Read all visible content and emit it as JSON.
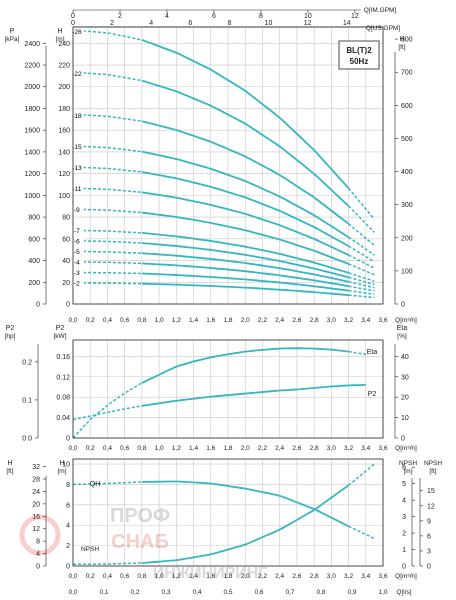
{
  "chart_data": [
    {
      "type": "line",
      "title": "BL(T)2",
      "subtitle": "50Hz",
      "top_axes": [
        {
          "label": "Q[IM.GPM]",
          "ticks": [
            0,
            2,
            4,
            6,
            8,
            10,
            12
          ]
        },
        {
          "label": "Q[US.GPM]",
          "ticks": [
            0,
            2,
            4,
            6,
            8,
            10,
            12,
            14
          ]
        }
      ],
      "xlabel": "Q[m³/h]",
      "xlim": [
        0,
        3.6
      ],
      "x_ticks": [
        "0,0",
        "0,2",
        "0,4",
        "0,6",
        "0,8",
        "1,0",
        "1,2",
        "1,4",
        "1,6",
        "1,8",
        "2,0",
        "2,2",
        "2,4",
        "2,6",
        "2,8",
        "3,0",
        "3,2",
        "3,4",
        "3,6"
      ],
      "left_axes": [
        {
          "label": "P",
          "unit": "[kPa]",
          "ticks": [
            0,
            200,
            400,
            600,
            800,
            1000,
            1200,
            1400,
            1600,
            1800,
            2000,
            2200,
            2400
          ]
        },
        {
          "label": "H",
          "unit": "[m]",
          "ticks": [
            0,
            20,
            40,
            60,
            80,
            100,
            120,
            140,
            160,
            180,
            200,
            220,
            240
          ]
        }
      ],
      "right_axis": {
        "label": "H",
        "unit": "[ft]",
        "ticks": [
          0,
          100,
          200,
          300,
          400,
          500,
          600,
          700,
          800
        ]
      },
      "ylim": [
        0,
        255
      ],
      "stages": [
        2,
        3,
        4,
        5,
        6,
        7,
        9,
        11,
        13,
        15,
        18,
        22,
        26
      ],
      "curve_shape": {
        "x": [
          0.0,
          0.4,
          0.8,
          1.2,
          1.6,
          2.0,
          2.4,
          2.8,
          3.2,
          3.5
        ],
        "h_per_stage": [
          9.7,
          9.6,
          9.35,
          8.9,
          8.3,
          7.55,
          6.6,
          5.45,
          4.1,
          3.0
        ],
        "solid_range": [
          0.8,
          3.2
        ]
      }
    },
    {
      "type": "line",
      "xlabel": "Q[m³/h]",
      "xlim": [
        0,
        3.6
      ],
      "x_ticks": [
        "0,0",
        "0,2",
        "0,4",
        "0,6",
        "0,8",
        "1,0",
        "1,2",
        "1,4",
        "1,6",
        "1,8",
        "2,0",
        "2,2",
        "2,4",
        "2,6",
        "2,8",
        "3,0",
        "3,2",
        "3,4",
        "3,6"
      ],
      "left_axes": [
        {
          "label": "P2",
          "unit": "[hp]",
          "ticks": [
            0.0,
            0.1,
            0.2
          ]
        },
        {
          "label": "P2",
          "unit": "[kW]",
          "ticks": [
            0,
            0.04,
            0.08,
            0.12,
            0.16
          ]
        }
      ],
      "right_axis": {
        "label": "Eta",
        "unit": "[%]",
        "ticks": [
          0,
          10,
          20,
          30,
          40
        ]
      },
      "ylim": [
        0,
        0.192
      ],
      "series": [
        {
          "name": "Eta",
          "axis": "right",
          "x": [
            0.0,
            0.2,
            0.4,
            0.6,
            0.8,
            1.0,
            1.2,
            1.4,
            1.6,
            1.8,
            2.0,
            2.2,
            2.4,
            2.6,
            2.8,
            3.0,
            3.2,
            3.4
          ],
          "y": [
            0,
            9,
            16,
            22,
            27,
            31,
            35,
            37.5,
            39.5,
            41,
            42.3,
            43.2,
            43.8,
            44,
            43.8,
            43.3,
            42.3,
            41
          ],
          "solid_range": [
            0.8,
            3.2
          ]
        },
        {
          "name": "P2",
          "axis": "left",
          "x": [
            0.0,
            0.2,
            0.4,
            0.6,
            0.8,
            1.0,
            1.2,
            1.4,
            1.6,
            1.8,
            2.0,
            2.2,
            2.4,
            2.6,
            2.8,
            3.0,
            3.2,
            3.4
          ],
          "y": [
            0.036,
            0.043,
            0.05,
            0.057,
            0.063,
            0.068,
            0.073,
            0.077,
            0.081,
            0.084,
            0.087,
            0.09,
            0.093,
            0.095,
            0.098,
            0.101,
            0.103,
            0.104
          ],
          "solid_range": [
            0.8,
            3.4
          ]
        }
      ]
    },
    {
      "type": "line",
      "xlabel": "Q[m³/h]",
      "x2label": "Q[l/s]",
      "xlim": [
        0,
        3.6
      ],
      "x_ticks": [
        "0,0",
        "0,2",
        "0,4",
        "0,6",
        "0,8",
        "1,0",
        "1,2",
        "1,4",
        "1,6",
        "1,8",
        "2,0",
        "2,2",
        "2,4",
        "2,6",
        "2,8",
        "3,0",
        "3,2",
        "3,4",
        "3,6"
      ],
      "x2_ticks": [
        "0,0",
        "0,1",
        "0,2",
        "0,3",
        "0,4",
        "0,5",
        "0,6",
        "0,7",
        "0,8",
        "0,9",
        "1,0"
      ],
      "left_axes": [
        {
          "label": "H",
          "unit": "[ft]",
          "ticks": [
            0,
            4,
            8,
            12,
            16,
            20,
            24,
            28,
            32
          ]
        },
        {
          "label": "H",
          "unit": "[m]",
          "ticks": [
            0,
            2,
            4,
            6,
            8,
            10
          ]
        }
      ],
      "right_axes": [
        {
          "label": "NPSH",
          "unit": "[m]",
          "ticks": [
            0,
            1,
            2,
            3,
            4,
            5,
            6
          ]
        },
        {
          "label": "NPSH",
          "unit": "[ft]",
          "ticks": [
            0,
            3,
            6,
            9,
            12,
            15
          ]
        }
      ],
      "ylim": [
        0,
        10.5
      ],
      "series": [
        {
          "name": "QH",
          "x": [
            0.0,
            0.4,
            0.8,
            1.2,
            1.6,
            2.0,
            2.4,
            2.8,
            3.2,
            3.5
          ],
          "y": [
            8.0,
            8.1,
            8.25,
            8.3,
            8.1,
            7.6,
            6.9,
            5.6,
            3.9,
            2.7
          ],
          "solid_range": [
            0.8,
            3.2
          ]
        },
        {
          "name": "NPSH",
          "x": [
            0.0,
            0.4,
            0.8,
            1.2,
            1.6,
            2.0,
            2.4,
            2.8,
            3.2,
            3.5
          ],
          "y": [
            0.1,
            0.12,
            0.18,
            0.35,
            0.7,
            1.3,
            2.2,
            3.4,
            4.9,
            6.2
          ],
          "solid_range": [
            0.8,
            3.2
          ]
        }
      ]
    }
  ],
  "watermark": {
    "line1": "ПРОФ",
    "line2": "СНАБ",
    "line3": "ИНЖИНИРИНГ"
  }
}
